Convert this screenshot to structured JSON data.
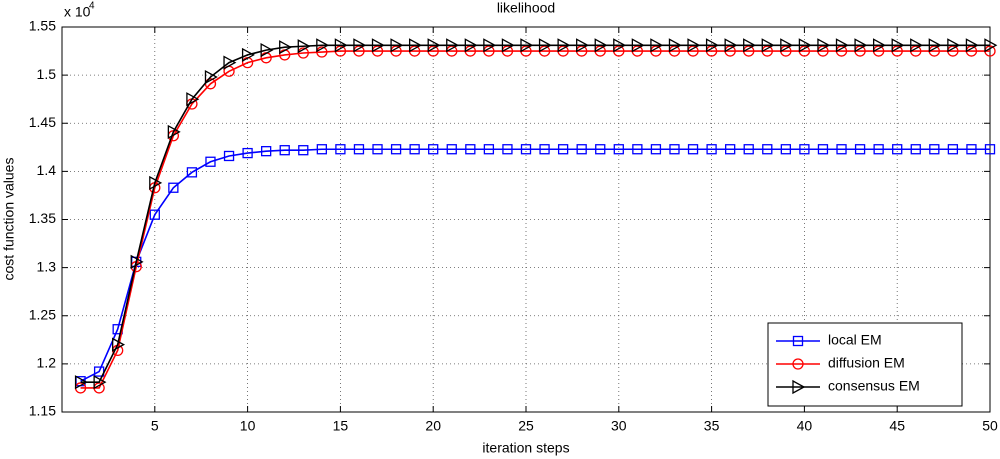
{
  "chart_data": {
    "type": "line",
    "title": "likelihood",
    "x_label": "iteration steps",
    "y_label": "cost function values",
    "y_multiplier": {
      "base": "x 10",
      "exponent": "4"
    },
    "x": [
      1,
      2,
      3,
      4,
      5,
      6,
      7,
      8,
      9,
      10,
      11,
      12,
      13,
      14,
      15,
      16,
      17,
      18,
      19,
      20,
      21,
      22,
      23,
      24,
      25,
      26,
      27,
      28,
      29,
      30,
      31,
      32,
      33,
      34,
      35,
      36,
      37,
      38,
      39,
      40,
      41,
      42,
      43,
      44,
      45,
      46,
      47,
      48,
      49,
      50
    ],
    "series": [
      {
        "name": "local EM",
        "color": "#0000ff",
        "marker": "square",
        "values": [
          1.182,
          1.192,
          1.236,
          1.306,
          1.355,
          1.383,
          1.399,
          1.41,
          1.416,
          1.419,
          1.421,
          1.422,
          1.422,
          1.423,
          1.423,
          1.423,
          1.423,
          1.423,
          1.423,
          1.423,
          1.423,
          1.423,
          1.423,
          1.423,
          1.423,
          1.423,
          1.423,
          1.423,
          1.423,
          1.423,
          1.423,
          1.423,
          1.423,
          1.423,
          1.423,
          1.423,
          1.423,
          1.423,
          1.423,
          1.423,
          1.423,
          1.423,
          1.423,
          1.423,
          1.423,
          1.423,
          1.423,
          1.423,
          1.423,
          1.423
        ]
      },
      {
        "name": "diffusion EM",
        "color": "#ff0000",
        "marker": "circle",
        "values": [
          1.175,
          1.175,
          1.214,
          1.301,
          1.383,
          1.437,
          1.47,
          1.491,
          1.504,
          1.513,
          1.518,
          1.521,
          1.523,
          1.524,
          1.525,
          1.525,
          1.525,
          1.525,
          1.525,
          1.525,
          1.525,
          1.525,
          1.525,
          1.525,
          1.525,
          1.525,
          1.525,
          1.525,
          1.525,
          1.525,
          1.525,
          1.525,
          1.525,
          1.525,
          1.525,
          1.525,
          1.525,
          1.525,
          1.525,
          1.525,
          1.525,
          1.525,
          1.525,
          1.525,
          1.525,
          1.525,
          1.525,
          1.525,
          1.525,
          1.525
        ]
      },
      {
        "name": "consensus EM",
        "color": "#000000",
        "marker": "triangle-right",
        "values": [
          1.181,
          1.181,
          1.22,
          1.306,
          1.388,
          1.441,
          1.475,
          1.498,
          1.513,
          1.521,
          1.526,
          1.529,
          1.53,
          1.531,
          1.531,
          1.531,
          1.531,
          1.531,
          1.531,
          1.531,
          1.531,
          1.531,
          1.531,
          1.531,
          1.531,
          1.531,
          1.531,
          1.531,
          1.531,
          1.531,
          1.531,
          1.531,
          1.531,
          1.531,
          1.531,
          1.531,
          1.531,
          1.531,
          1.531,
          1.531,
          1.531,
          1.531,
          1.531,
          1.531,
          1.531,
          1.531,
          1.531,
          1.531,
          1.531,
          1.531
        ]
      }
    ],
    "xlim": [
      0,
      50
    ],
    "xticks": [
      5,
      10,
      15,
      20,
      25,
      30,
      35,
      40,
      45,
      50
    ],
    "ylim": [
      1.15,
      1.55
    ],
    "yticks": [
      1.15,
      1.2,
      1.25,
      1.3,
      1.35,
      1.4,
      1.45,
      1.5,
      1.55
    ],
    "grid": true,
    "legend_position": "lower right"
  }
}
